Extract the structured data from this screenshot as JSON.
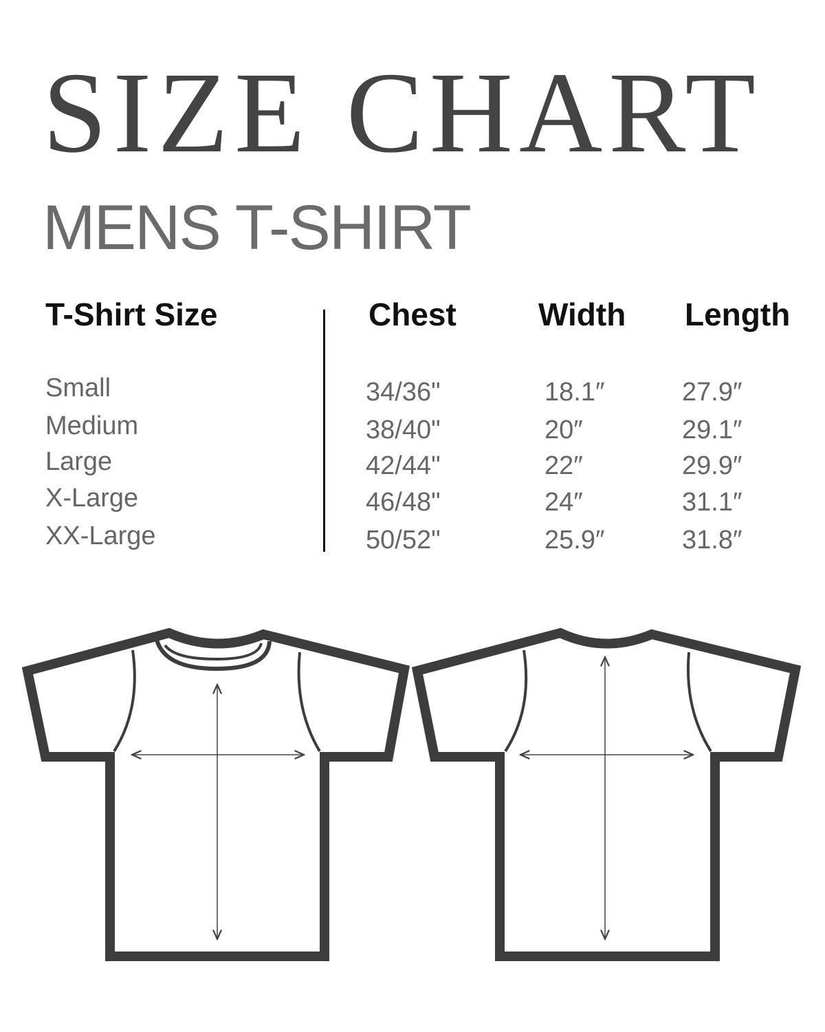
{
  "title": "SIZE CHART",
  "subtitle": "MENS T-SHIRT",
  "table": {
    "headers": [
      "T-Shirt Size",
      "Chest",
      "Width",
      "Length"
    ],
    "rows": [
      [
        "Small",
        "34/36\"",
        "18.1″",
        "27.9″"
      ],
      [
        "Medium",
        "38/40\"",
        "20″",
        "29.1″"
      ],
      [
        "Large",
        "42/44\"",
        "22″",
        "29.9″"
      ],
      [
        "X-Large",
        "46/48\"",
        "24″",
        "31.1″"
      ],
      [
        "XX-Large",
        "50/52\"",
        "25.9″",
        "31.8″"
      ]
    ]
  },
  "colors": {
    "title": "#444444",
    "subtitle": "#6b6b6b",
    "outline": "#3d3d3d",
    "values": "#666666"
  }
}
